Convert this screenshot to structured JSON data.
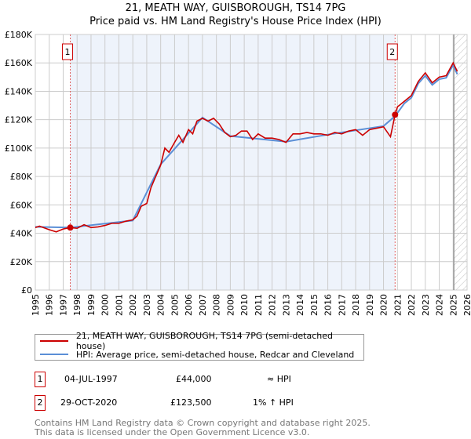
{
  "chart_data": {
    "type": "line",
    "title": "21, MEATH WAY, GUISBOROUGH, TS14 7PG",
    "subtitle": "Price paid vs. HM Land Registry's House Price Index (HPI)",
    "xlim": [
      1995,
      2026
    ],
    "ylim": [
      0,
      180000
    ],
    "x_ticks": [
      "1995",
      "1996",
      "1997",
      "1998",
      "1999",
      "2000",
      "2001",
      "2002",
      "2003",
      "2004",
      "2005",
      "2006",
      "2007",
      "2008",
      "2009",
      "2010",
      "2011",
      "2012",
      "2013",
      "2014",
      "2015",
      "2016",
      "2017",
      "2018",
      "2019",
      "2020",
      "2021",
      "2022",
      "2023",
      "2024",
      "2025",
      "2026"
    ],
    "y_ticks": [
      "£0",
      "£20K",
      "£40K",
      "£60K",
      "£80K",
      "£100K",
      "£120K",
      "£140K",
      "£160K",
      "£180K"
    ],
    "grid": true,
    "series": [
      {
        "name": "21, MEATH WAY, GUISBOROUGH, TS14 7PG (semi-detached house)",
        "color": "#cc0000",
        "x": [
          1995,
          1995.3,
          1996,
          1996.5,
          1997,
          1997.5,
          1998,
          1998.5,
          1999,
          1999.5,
          2000,
          2000.5,
          2001,
          2001.5,
          2002,
          2002.3,
          2002.6,
          2003,
          2003.3,
          2003.6,
          2004,
          2004.3,
          2004.6,
          2005,
          2005.3,
          2005.6,
          2006,
          2006.3,
          2006.6,
          2007,
          2007.4,
          2007.8,
          2008.2,
          2008.6,
          2009,
          2009.4,
          2009.8,
          2010.2,
          2010.6,
          2011,
          2011.5,
          2012,
          2012.5,
          2013,
          2013.5,
          2014,
          2014.5,
          2015,
          2015.5,
          2016,
          2016.5,
          2017,
          2017.5,
          2018,
          2018.5,
          2019,
          2019.5,
          2020,
          2020.5,
          2020.83,
          2021,
          2021.5,
          2022,
          2022.5,
          2023,
          2023.5,
          2024,
          2024.5,
          2025,
          2025.3
        ],
        "y": [
          44000,
          45000,
          42500,
          41000,
          43000,
          44000,
          43500,
          46000,
          44000,
          44500,
          45500,
          47000,
          47000,
          48500,
          49500,
          52000,
          59000,
          61000,
          72000,
          79000,
          88000,
          100000,
          97000,
          104000,
          109000,
          104000,
          113000,
          110000,
          119000,
          121000,
          119000,
          121000,
          117000,
          111000,
          108000,
          109000,
          112000,
          112000,
          106000,
          110000,
          107000,
          107000,
          106000,
          104000,
          110000,
          110000,
          111000,
          110000,
          110000,
          109000,
          111000,
          110000,
          112000,
          113000,
          109000,
          113000,
          114000,
          115000,
          108000,
          123500,
          129000,
          133000,
          137000,
          147000,
          153000,
          146000,
          150000,
          151000,
          160000,
          154000
        ]
      },
      {
        "name": "HPI: Average price, semi-detached house, Redcar and Cleveland",
        "color": "#5b8fd6",
        "x": [
          1995,
          1997.5,
          2002,
          2004,
          2007,
          2009,
          2013,
          2016,
          2020,
          2020.83,
          2021.5,
          2022,
          2022.5,
          2023,
          2023.5,
          2024,
          2024.5,
          2025,
          2025.3
        ],
        "y": [
          44500,
          44000,
          49000,
          88500,
          121500,
          108500,
          104500,
          109500,
          115500,
          122500,
          131500,
          135500,
          145500,
          151000,
          144500,
          148500,
          149500,
          158500,
          152000
        ]
      }
    ],
    "sales": [
      {
        "label": "1",
        "x": 1997.51,
        "y": 44000
      },
      {
        "label": "2",
        "x": 2020.83,
        "y": 123500
      }
    ],
    "colors": {
      "shade": "#eef3fb",
      "grid": "#cccccc"
    }
  },
  "legend": [
    {
      "label": "21, MEATH WAY, GUISBOROUGH, TS14 7PG (semi-detached house)",
      "color": "#cc0000"
    },
    {
      "label": "HPI: Average price, semi-detached house, Redcar and Cleveland",
      "color": "#5b8fd6"
    }
  ],
  "table": [
    {
      "num": "1",
      "date": "04-JUL-1997",
      "price": "£44,000",
      "hpi": "≈ HPI"
    },
    {
      "num": "2",
      "date": "29-OCT-2020",
      "price": "£123,500",
      "hpi": "1% ↑ HPI"
    }
  ],
  "footer": {
    "line1": "Contains HM Land Registry data © Crown copyright and database right 2025.",
    "line2": "This data is licensed under the Open Government Licence v3.0."
  }
}
